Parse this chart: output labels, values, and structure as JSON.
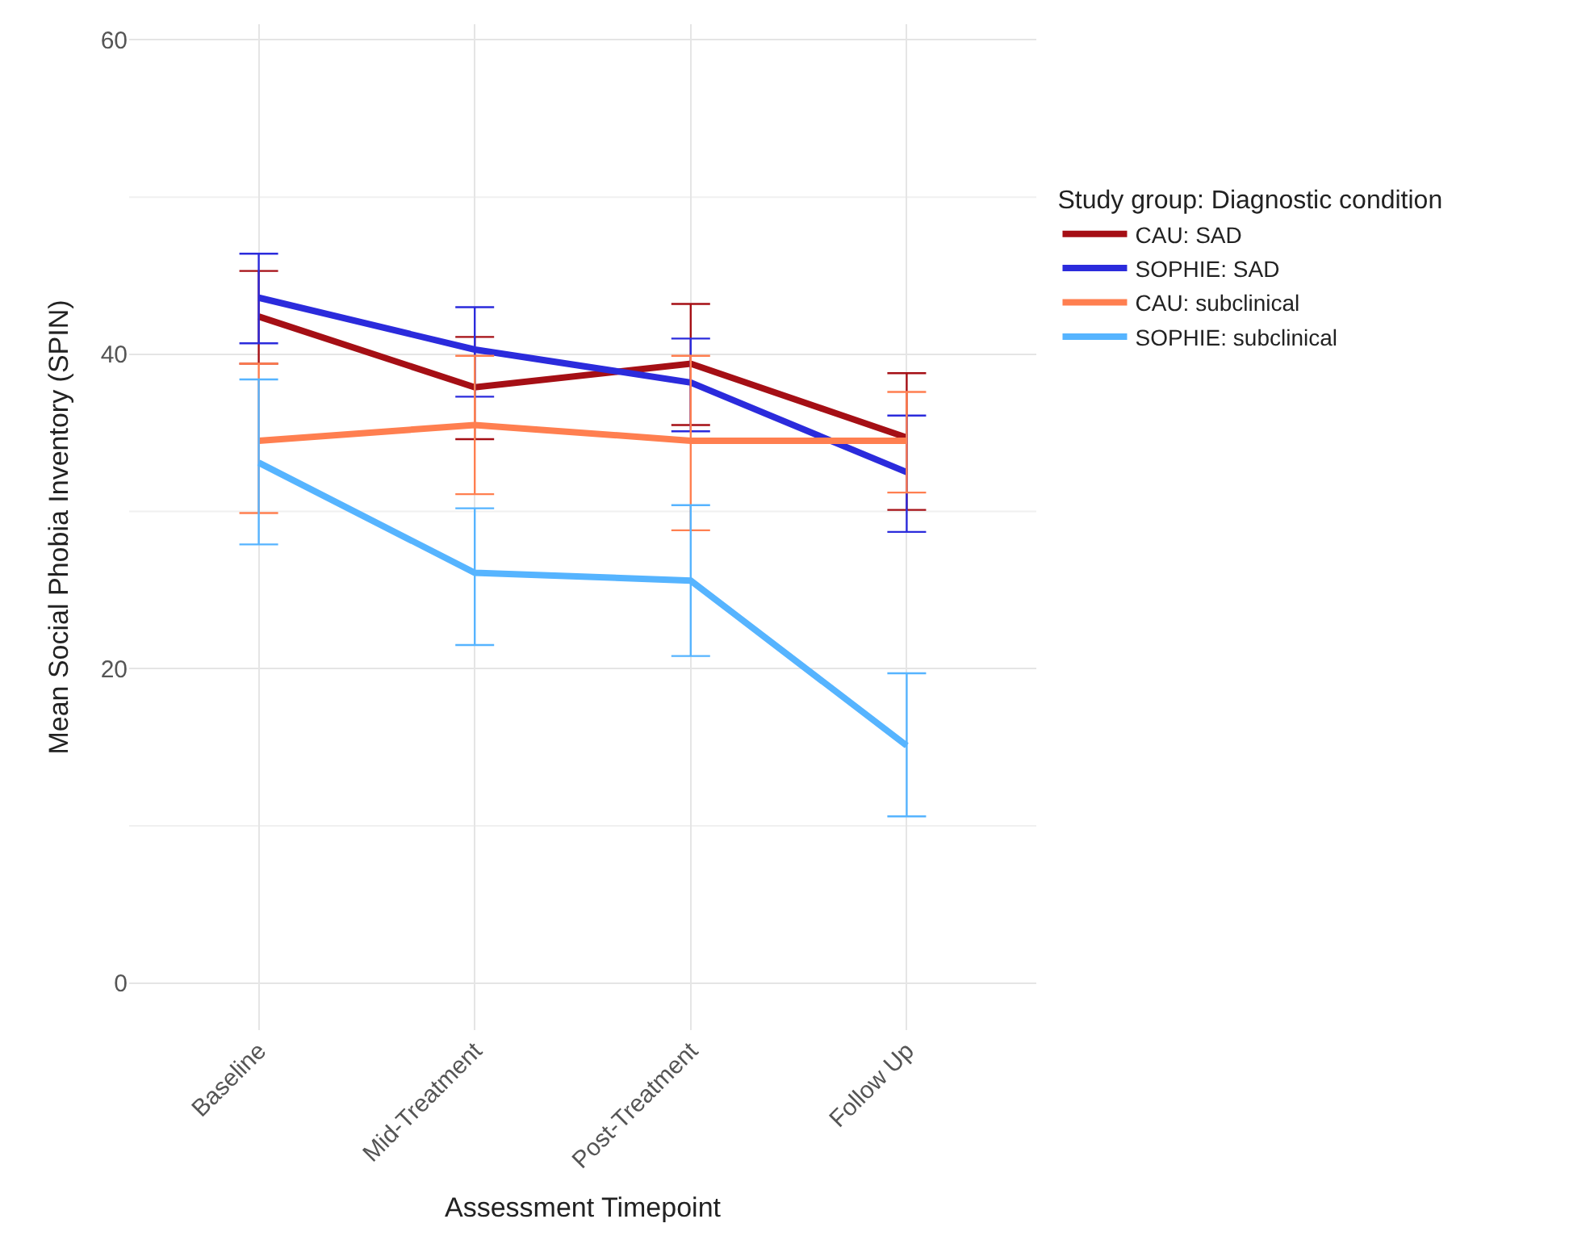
{
  "chart_data": {
    "type": "line",
    "xlabel": "Assessment Timepoint",
    "ylabel": "Mean Social Phobia Inventory (SPIN)",
    "legend_title": "Study group: Diagnostic condition",
    "categories": [
      "Baseline",
      "Mid-Treatment",
      "Post-Treatment",
      "Follow Up"
    ],
    "series": [
      {
        "name": "CAU: SAD",
        "color": "#a50f15",
        "values": [
          42.4,
          37.9,
          39.4,
          34.7
        ],
        "errors": [
          [
            39.4,
            45.3
          ],
          [
            34.6,
            41.1
          ],
          [
            35.5,
            43.2
          ],
          [
            30.1,
            38.8
          ]
        ]
      },
      {
        "name": "SOPHIE: SAD",
        "color": "#2b2bdc",
        "values": [
          43.6,
          40.3,
          38.2,
          32.5
        ],
        "errors": [
          [
            40.7,
            46.4
          ],
          [
            37.3,
            43.0
          ],
          [
            35.1,
            41.0
          ],
          [
            28.7,
            36.1
          ]
        ]
      },
      {
        "name": "CAU: subclinical",
        "color": "#ff7f50",
        "values": [
          34.5,
          35.5,
          34.5,
          34.5
        ],
        "errors": [
          [
            29.9,
            39.4
          ],
          [
            31.1,
            39.9
          ],
          [
            28.8,
            39.9
          ],
          [
            31.2,
            37.6
          ]
        ]
      },
      {
        "name": "SOPHIE: subclinical",
        "color": "#56b4ff",
        "values": [
          33.1,
          26.1,
          25.6,
          15.1
        ],
        "errors": [
          [
            27.9,
            38.4
          ],
          [
            21.5,
            30.2
          ],
          [
            20.8,
            30.4
          ],
          [
            10.6,
            19.7
          ]
        ]
      }
    ],
    "ylim": [
      -3,
      61
    ],
    "yticks": [
      0,
      20,
      40,
      60
    ],
    "grid": true,
    "legend": "right",
    "marker": "none",
    "line_style": "solid"
  }
}
